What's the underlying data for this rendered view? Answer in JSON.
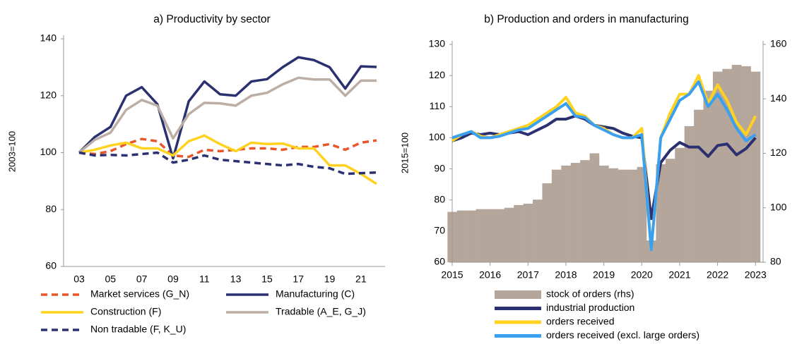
{
  "chart_data": [
    {
      "type": "line",
      "title": "a) Productivity by sector",
      "y_label": "2003=100",
      "categories": [
        "03",
        null,
        "05",
        null,
        "07",
        null,
        "09",
        null,
        "11",
        null,
        "13",
        null,
        "15",
        null,
        "17",
        null,
        "19",
        null,
        "21",
        null
      ],
      "ylim": [
        60,
        140
      ],
      "yticks": [
        60,
        80,
        100,
        120,
        140
      ],
      "grid": false,
      "legend_columns": 2,
      "series": [
        {
          "name": "Market services (G_N)",
          "color": "#e8562a",
          "dashed": true,
          "values": [
            100,
            99.5,
            100.5,
            103,
            104.8,
            104,
            99,
            98.5,
            101,
            100.5,
            101,
            101.5,
            101.5,
            101,
            102,
            102,
            103,
            101,
            103.5,
            104.3
          ]
        },
        {
          "name": "Manufacturing (C)",
          "color": "#2b3170",
          "dashed": false,
          "values": [
            100,
            105.5,
            109,
            120,
            123,
            117,
            98,
            118,
            125,
            120.5,
            120,
            125,
            125.8,
            130,
            133.5,
            132.5,
            130,
            122.5,
            130.3,
            130.1
          ]
        },
        {
          "name": "Construction (F)",
          "color": "#ffd21f",
          "dashed": false,
          "values": [
            100,
            101,
            102.5,
            103.5,
            101.5,
            101.5,
            99,
            104,
            106,
            103,
            100.5,
            103.5,
            103,
            103.2,
            101.5,
            101.5,
            95.5,
            95.5,
            92.5,
            89
          ]
        },
        {
          "name": "Tradable (A_E, G_J)",
          "color": "#bcaea5",
          "dashed": false,
          "values": [
            100,
            104.5,
            107,
            115,
            118.5,
            116.5,
            105,
            113.5,
            117.5,
            117.3,
            116.5,
            120,
            121,
            124,
            126.3,
            125.7,
            125.7,
            120,
            125.3,
            125.3
          ]
        },
        {
          "name": "Non tradable (F, K_U)",
          "color": "#2b3170",
          "dashed": true,
          "values": [
            100,
            99,
            99.2,
            99,
            99.5,
            100,
            96.5,
            97.5,
            99,
            97.5,
            97,
            96.5,
            96,
            95.5,
            96,
            95,
            94.5,
            92.5,
            92.8,
            93
          ]
        }
      ]
    },
    {
      "type": "line",
      "title": "b) Production and orders in manufacturing",
      "y_label": "2015=100",
      "x": [
        2015,
        2015.25,
        2015.5,
        2015.75,
        2016,
        2016.25,
        2016.5,
        2016.75,
        2017,
        2017.25,
        2017.5,
        2017.75,
        2018,
        2018.25,
        2018.5,
        2018.75,
        2019,
        2019.25,
        2019.5,
        2019.75,
        2020,
        2020.25,
        2020.5,
        2020.75,
        2021,
        2021.25,
        2021.5,
        2021.75,
        2022,
        2022.25,
        2022.5,
        2022.75,
        2023
      ],
      "xlim": [
        2015,
        2023.2
      ],
      "xticks": [
        2015,
        2016,
        2017,
        2018,
        2019,
        2020,
        2021,
        2022,
        2023
      ],
      "ylim": [
        60,
        130
      ],
      "yticks": [
        60,
        70,
        80,
        90,
        100,
        110,
        120,
        130
      ],
      "y2lim": [
        80,
        160
      ],
      "y2ticks": [
        80,
        100,
        120,
        140,
        160
      ],
      "grid": false,
      "legend_columns": 1,
      "series": [
        {
          "name": "stock of orders (rhs)",
          "color": "#b5a69c",
          "type": "bar",
          "axis": "y2",
          "values": [
            98.5,
            99,
            99,
            99.5,
            99.5,
            99.5,
            100,
            101,
            101.5,
            103,
            109,
            114,
            115.5,
            116.5,
            117.5,
            120,
            115.5,
            114.5,
            114,
            114,
            115,
            88,
            116,
            118,
            122,
            130,
            136,
            143,
            150,
            151,
            152.5,
            152,
            150
          ]
        },
        {
          "name": "industrial production",
          "color": "#2b3170",
          "type": "line",
          "values": [
            99,
            100,
            101.5,
            101,
            101.5,
            101,
            101.5,
            102,
            101,
            102.5,
            104,
            106,
            106,
            107,
            106,
            104,
            103.5,
            103,
            101.5,
            100.5,
            100,
            74,
            92,
            96,
            98.5,
            97,
            97,
            94,
            97.5,
            98,
            94.5,
            96.5,
            100
          ]
        },
        {
          "name": "orders received",
          "color": "#ffd21f",
          "type": "line",
          "values": [
            99,
            101,
            102,
            100.5,
            100,
            101,
            102,
            103,
            104,
            106,
            108,
            110,
            113,
            108,
            107,
            104,
            103,
            101,
            100,
            100,
            103,
            64,
            100,
            108,
            114,
            114,
            120,
            111,
            117,
            112,
            105,
            101,
            107
          ]
        },
        {
          "name": "orders received (excl. large orders)",
          "color": "#3aa0f0",
          "type": "line",
          "values": [
            100,
            101,
            102,
            100,
            100,
            100.5,
            101.5,
            102.5,
            103,
            105,
            107,
            109,
            111,
            107,
            106.5,
            104,
            102.5,
            101,
            100,
            100,
            101,
            64,
            100,
            106,
            112,
            114,
            118,
            110,
            114,
            109,
            103,
            99,
            101
          ]
        }
      ]
    }
  ]
}
